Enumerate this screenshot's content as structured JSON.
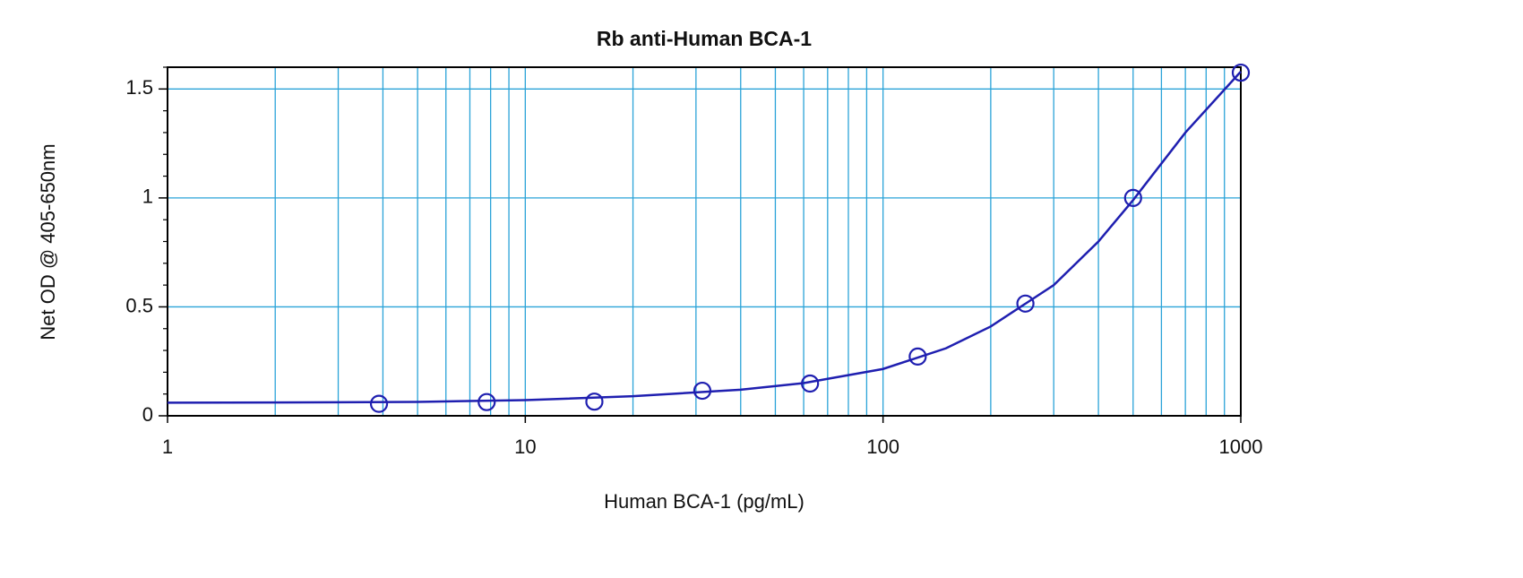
{
  "chart_data": {
    "type": "scatter",
    "title": "Rb anti-Human BCA-1",
    "x_label": "Human BCA-1 (pg/mL)",
    "y_label": "Net OD @ 405-650nm",
    "x_log": true,
    "grid": true,
    "xlim": [
      1,
      1000
    ],
    "xticks": [
      1,
      10,
      100,
      1000
    ],
    "xminor_ticks": [
      2,
      3,
      4,
      5,
      6,
      7,
      8,
      9,
      20,
      30,
      40,
      50,
      60,
      70,
      80,
      90,
      200,
      300,
      400,
      500,
      600,
      700,
      800,
      900
    ],
    "ylim": [
      0,
      1.6
    ],
    "yticks": [
      0,
      0.5,
      1,
      1.5
    ],
    "yminor_ticks": [
      0.1,
      0.2,
      0.3,
      0.4,
      0.6,
      0.7,
      0.8,
      0.9,
      1.1,
      1.2,
      1.3,
      1.4,
      1.6
    ],
    "grid_color": "#2aa3d8",
    "series": [
      {
        "style": "markers",
        "color": "#1f1fb0",
        "x": [
          3.9,
          7.8,
          15.6,
          31.25,
          62.5,
          125,
          250,
          500,
          1000
        ],
        "values": [
          0.055,
          0.063,
          0.065,
          0.115,
          0.148,
          0.272,
          0.515,
          1.0,
          1.575
        ]
      },
      {
        "style": "line",
        "color": "#1f1fb0",
        "x": [
          1,
          2,
          5,
          10,
          20,
          40,
          60,
          100,
          150,
          200,
          300,
          400,
          500,
          700,
          1000
        ],
        "values": [
          0.06,
          0.061,
          0.064,
          0.072,
          0.09,
          0.12,
          0.15,
          0.215,
          0.31,
          0.41,
          0.6,
          0.8,
          0.99,
          1.3,
          1.58
        ]
      }
    ]
  }
}
